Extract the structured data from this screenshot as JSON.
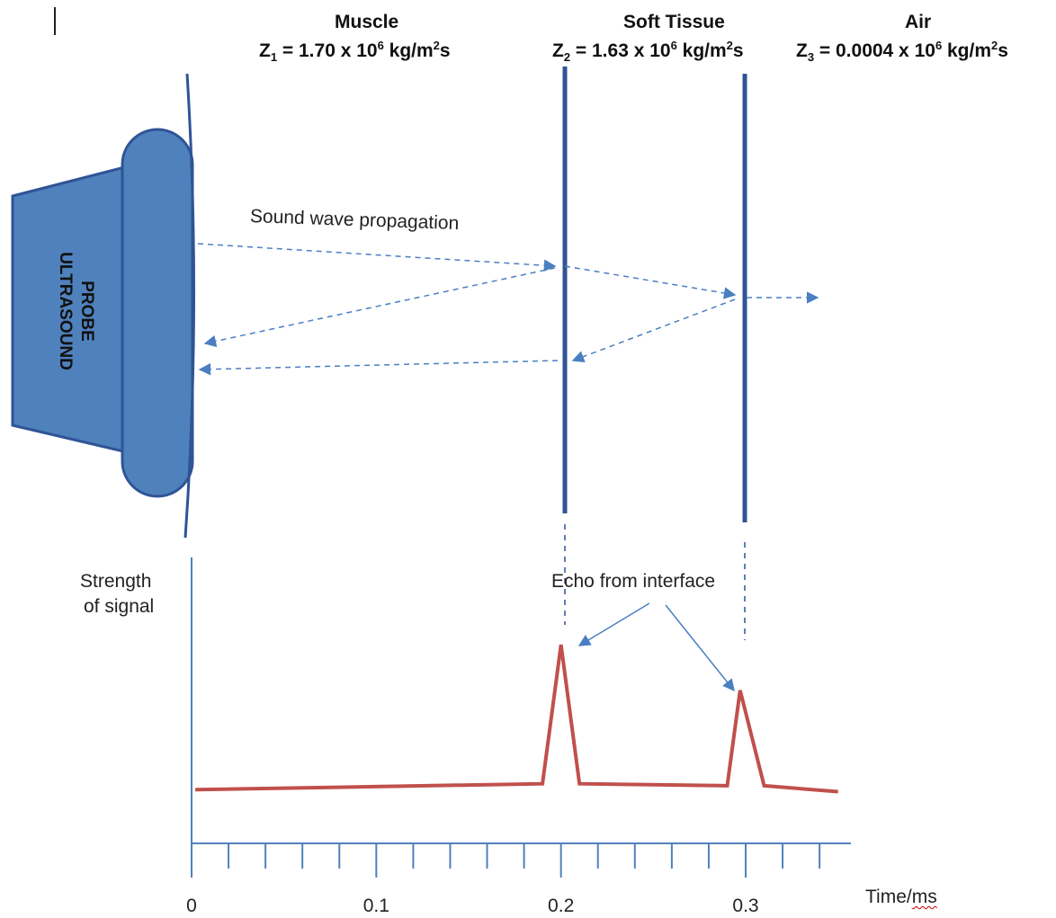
{
  "media": {
    "muscle": {
      "name": "Muscle",
      "z_symbol": "Z",
      "z_sub": "1",
      "z_value": " = 1.70 x 10",
      "z_exp": "6",
      "z_unit": " kg/m",
      "z_unit_exp": "2",
      "z_unit_tail": "s"
    },
    "soft_tissue": {
      "name": "Soft Tissue",
      "z_symbol": "Z",
      "z_sub": "2",
      "z_value": " = 1.63 x 10",
      "z_exp": "6",
      "z_unit": " kg/m",
      "z_unit_exp": "2",
      "z_unit_tail": "s"
    },
    "air": {
      "name": "Air",
      "z_symbol": "Z",
      "z_sub": "3",
      "z_value": " = 0.0004 x 10",
      "z_exp": "6",
      "z_unit": " kg/m",
      "z_unit_exp": "2",
      "z_unit_tail": "s"
    }
  },
  "probe": {
    "label_line1": "ULTRASOUND",
    "label_line2": "PROBE",
    "color": "#4f81bd",
    "border_color": "#2f5496"
  },
  "annotations": {
    "propagation": "Sound wave propagation",
    "echo": "Echo from interface"
  },
  "chart_data": {
    "type": "line",
    "ylabel_line1": "Strength",
    "ylabel_line2": "of signal",
    "xlabel_prefix": "Time/",
    "xlabel_unit": "ms",
    "x_ticks": [
      "0",
      "0.1",
      "0.2",
      "0.3"
    ],
    "x_tick_values": [
      0,
      0.1,
      0.2,
      0.3
    ],
    "x_minor_step": 0.02,
    "xlim": [
      0,
      0.35
    ],
    "ylim": [
      0,
      1
    ],
    "series": [
      {
        "x": [
          0.002,
          0.19,
          0.2,
          0.21,
          0.29,
          0.297,
          0.31,
          0.35
        ],
        "y": [
          0.27,
          0.3,
          1.0,
          0.3,
          0.29,
          0.77,
          0.29,
          0.26
        ],
        "color": "#c0504d"
      }
    ],
    "axis_color": "#4f81bd"
  },
  "colors": {
    "interface_line": "#2f5496",
    "arrow": "#4a7fc1",
    "signal": "#c0504d"
  }
}
